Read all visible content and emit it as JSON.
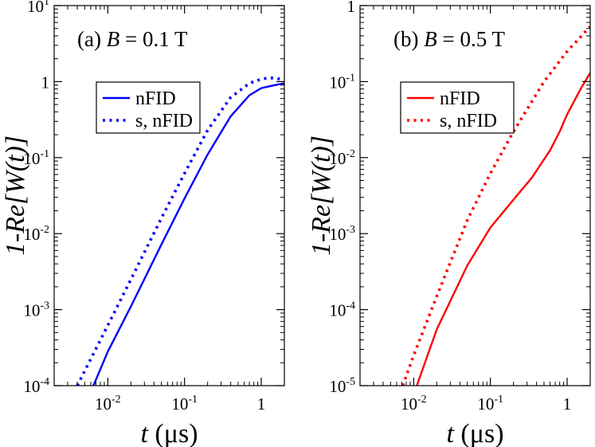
{
  "chart_data": [
    {
      "type": "line",
      "panel_label": "(a) ",
      "panel_var": "B",
      "panel_value": " = 0.1 T",
      "xlabel_var": "t",
      "xlabel_unit": " (μs)",
      "ylabel_prefix": "1-Re[",
      "ylabel_var": "W(t)",
      "ylabel_suffix": "]",
      "xscale": "log",
      "yscale": "log",
      "xlim": [
        0.002,
        2.0
      ],
      "ylim": [
        0.0001,
        10
      ],
      "x_ticks": [
        {
          "value": 0.01,
          "base": "10",
          "exp": "-2"
        },
        {
          "value": 0.1,
          "base": "10",
          "exp": "-1"
        },
        {
          "value": 1,
          "base": "1",
          "exp": ""
        }
      ],
      "y_ticks": [
        {
          "value": 0.0001,
          "base": "10",
          "exp": "-4"
        },
        {
          "value": 0.001,
          "base": "10",
          "exp": "-3"
        },
        {
          "value": 0.01,
          "base": "10",
          "exp": "-2"
        },
        {
          "value": 0.1,
          "base": "10",
          "exp": "-1"
        },
        {
          "value": 1,
          "base": "1",
          "exp": ""
        },
        {
          "value": 10,
          "base": "10",
          "exp": "1"
        }
      ],
      "legend_position": "upper-left",
      "series": [
        {
          "name": "nFID",
          "color": "#0000ff",
          "style": "solid",
          "x": [
            0.0065,
            0.01,
            0.02,
            0.05,
            0.1,
            0.2,
            0.4,
            0.7,
            1.0,
            1.5,
            2.0
          ],
          "y": [
            0.0001,
            0.00028,
            0.0011,
            0.0072,
            0.029,
            0.11,
            0.35,
            0.66,
            0.82,
            0.9,
            0.95
          ]
        },
        {
          "name": "s, nFID",
          "color": "#0000ff",
          "style": "dotted",
          "x": [
            0.004,
            0.01,
            0.02,
            0.05,
            0.1,
            0.2,
            0.4,
            0.7,
            1.0,
            1.3,
            1.6,
            2.0
          ],
          "y": [
            0.0001,
            0.00062,
            0.0025,
            0.016,
            0.062,
            0.23,
            0.62,
            0.95,
            1.08,
            1.12,
            1.1,
            1.05
          ]
        }
      ]
    },
    {
      "type": "line",
      "panel_label": "(b) ",
      "panel_var": "B",
      "panel_value": " = 0.5 T",
      "xlabel_var": "t",
      "xlabel_unit": " (μs)",
      "ylabel_prefix": "1-Re[",
      "ylabel_var": "W(t)",
      "ylabel_suffix": "]",
      "xscale": "log",
      "yscale": "log",
      "xlim": [
        0.002,
        2.0
      ],
      "ylim": [
        1e-05,
        1
      ],
      "x_ticks": [
        {
          "value": 0.01,
          "base": "10",
          "exp": "-2"
        },
        {
          "value": 0.1,
          "base": "10",
          "exp": "-1"
        },
        {
          "value": 1,
          "base": "1",
          "exp": ""
        }
      ],
      "y_ticks": [
        {
          "value": 1e-05,
          "base": "10",
          "exp": "-5"
        },
        {
          "value": 0.0001,
          "base": "10",
          "exp": "-4"
        },
        {
          "value": 0.001,
          "base": "10",
          "exp": "-3"
        },
        {
          "value": 0.01,
          "base": "10",
          "exp": "-2"
        },
        {
          "value": 0.1,
          "base": "10",
          "exp": "-1"
        },
        {
          "value": 1,
          "base": "1",
          "exp": ""
        }
      ],
      "legend_position": "upper-left",
      "series": [
        {
          "name": "nFID",
          "color": "#ff0000",
          "style": "solid",
          "x": [
            0.011,
            0.02,
            0.05,
            0.1,
            0.2,
            0.35,
            0.6,
            0.8,
            1.0,
            1.5,
            2.0
          ],
          "y": [
            1e-05,
            5.5e-05,
            0.00038,
            0.0012,
            0.0028,
            0.0055,
            0.0125,
            0.022,
            0.037,
            0.08,
            0.13
          ]
        },
        {
          "name": "s, nFID",
          "color": "#ff0000",
          "style": "dotted",
          "x": [
            0.0072,
            0.01,
            0.02,
            0.05,
            0.1,
            0.2,
            0.5,
            1.0,
            2.0
          ],
          "y": [
            1e-05,
            2.5e-05,
            0.00015,
            0.0015,
            0.0062,
            0.022,
            0.1,
            0.25,
            0.53
          ]
        }
      ]
    }
  ]
}
